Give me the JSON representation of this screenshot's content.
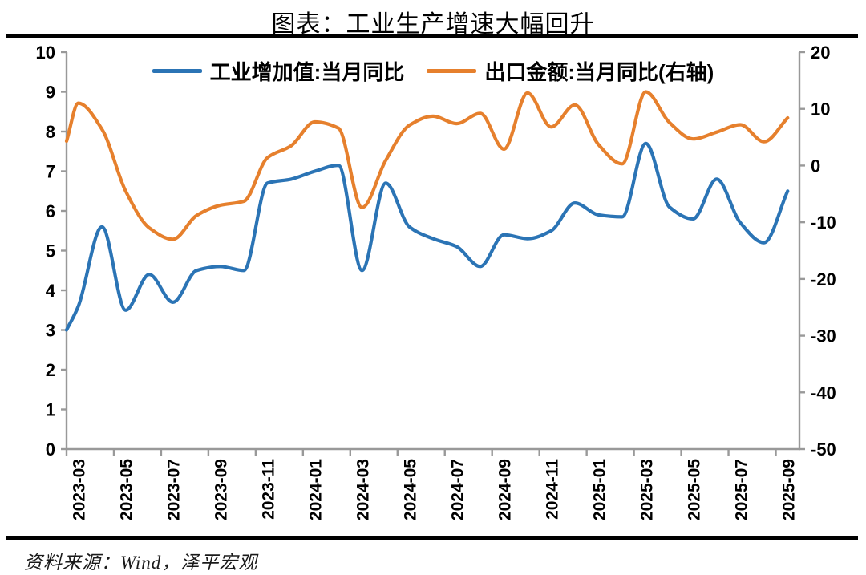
{
  "title": "图表：工业生产增速大幅回升",
  "source": "资料来源：Wind，泽平宏观",
  "colors": {
    "industrial_line": "#2B74B5",
    "export_line": "#E6802D",
    "axis": "#999999",
    "divider": "#000000",
    "text": "#000000"
  },
  "chart_data": {
    "type": "line",
    "smoothed": true,
    "grid": false,
    "legend_position": "top",
    "x": [
      "2023-03",
      "2023-04",
      "2023-05",
      "2023-06",
      "2023-07",
      "2023-08",
      "2023-09",
      "2023-10",
      "2023-11",
      "2023-12",
      "2024-01",
      "2024-02",
      "2024-03",
      "2024-04",
      "2024-05",
      "2024-06",
      "2024-07",
      "2024-08",
      "2024-09",
      "2024-10",
      "2024-11",
      "2024-12",
      "2025-01",
      "2025-02",
      "2025-03",
      "2025-04",
      "2025-05",
      "2025-06",
      "2025-07",
      "2025-08",
      "2025-09"
    ],
    "x_tick_labels": [
      "2023-03",
      "2023-05",
      "2023-07",
      "2023-09",
      "2023-11",
      "2024-01",
      "2024-03",
      "2024-05",
      "2024-07",
      "2024-09",
      "2024-11",
      "2025-01",
      "2025-03",
      "2025-05",
      "2025-07",
      "2025-09"
    ],
    "left_axis": {
      "min": 0,
      "max": 10,
      "step": 1,
      "tick_labels": [
        "0",
        "1",
        "2",
        "3",
        "4",
        "5",
        "6",
        "7",
        "8",
        "9",
        "10"
      ]
    },
    "right_axis": {
      "min": -50,
      "max": 20,
      "step": 10,
      "tick_labels": [
        "-50",
        "-40",
        "-30",
        "-20",
        "-10",
        "0",
        "10",
        "20"
      ]
    },
    "series": [
      {
        "name": "工业增加值:当月同比",
        "axis": "left",
        "color": "#2B74B5",
        "edge_start": 3.0,
        "values": [
          3.6,
          5.6,
          3.5,
          4.4,
          3.7,
          4.5,
          4.6,
          4.5,
          6.7,
          6.8,
          7.0,
          7.15,
          4.5,
          6.7,
          5.6,
          5.3,
          5.1,
          4.6,
          5.4,
          5.3,
          5.5,
          6.2,
          5.9,
          5.85,
          7.7,
          6.1,
          5.8,
          6.8,
          5.7,
          5.2,
          6.5
        ]
      },
      {
        "name": "出口金额:当月同比(右轴)",
        "axis": "right",
        "color": "#E6802D",
        "edge_start": 4.3,
        "values": [
          11.0,
          6.4,
          -4.5,
          -11.0,
          -13.0,
          -8.8,
          -7.0,
          -6.3,
          1.4,
          3.5,
          7.7,
          6.6,
          -7.4,
          0.9,
          7.1,
          8.7,
          7.4,
          9.2,
          2.9,
          12.8,
          6.8,
          10.7,
          3.7,
          0.3,
          13.0,
          7.6,
          4.7,
          5.9,
          7.2,
          4.2,
          8.4
        ]
      }
    ]
  }
}
